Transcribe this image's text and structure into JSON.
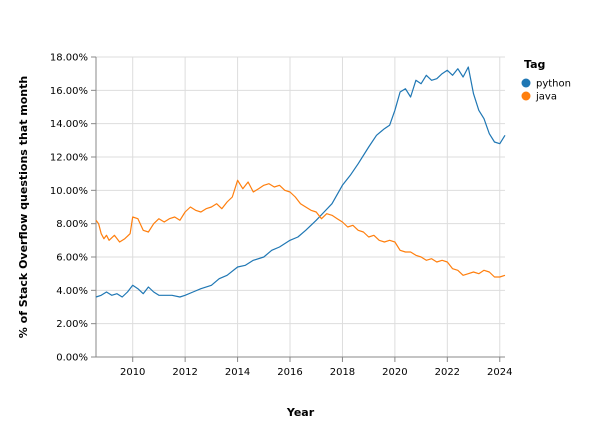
{
  "chart_data": {
    "type": "line",
    "title": "",
    "xlabel": "Year",
    "ylabel": "% of Stack Overflow questions that month",
    "xlim": [
      2008.6,
      2024.2
    ],
    "ylim": [
      0,
      18
    ],
    "x_ticks": [
      "2010",
      "2012",
      "2014",
      "2016",
      "2018",
      "2020",
      "2022",
      "2024"
    ],
    "y_ticks": [
      "0.00%",
      "2.00%",
      "4.00%",
      "6.00%",
      "8.00%",
      "10.00%",
      "12.00%",
      "14.00%",
      "16.00%",
      "18.00%"
    ],
    "grid": true,
    "legend": {
      "title": "Tag",
      "position": "top-right"
    },
    "series": [
      {
        "name": "python",
        "color": "#1f77b4",
        "points": [
          [
            2008.6,
            3.6
          ],
          [
            2008.8,
            3.7
          ],
          [
            2009.0,
            3.9
          ],
          [
            2009.2,
            3.7
          ],
          [
            2009.4,
            3.8
          ],
          [
            2009.6,
            3.6
          ],
          [
            2009.8,
            3.9
          ],
          [
            2010.0,
            4.3
          ],
          [
            2010.2,
            4.1
          ],
          [
            2010.4,
            3.8
          ],
          [
            2010.6,
            4.2
          ],
          [
            2010.8,
            3.9
          ],
          [
            2011.0,
            3.7
          ],
          [
            2011.2,
            3.7
          ],
          [
            2011.5,
            3.7
          ],
          [
            2011.8,
            3.6
          ],
          [
            2012.0,
            3.7
          ],
          [
            2012.3,
            3.9
          ],
          [
            2012.6,
            4.1
          ],
          [
            2013.0,
            4.3
          ],
          [
            2013.3,
            4.7
          ],
          [
            2013.6,
            4.9
          ],
          [
            2014.0,
            5.4
          ],
          [
            2014.3,
            5.5
          ],
          [
            2014.6,
            5.8
          ],
          [
            2015.0,
            6.0
          ],
          [
            2015.3,
            6.4
          ],
          [
            2015.6,
            6.6
          ],
          [
            2016.0,
            7.0
          ],
          [
            2016.3,
            7.2
          ],
          [
            2016.6,
            7.6
          ],
          [
            2017.0,
            8.2
          ],
          [
            2017.3,
            8.7
          ],
          [
            2017.6,
            9.2
          ],
          [
            2018.0,
            10.3
          ],
          [
            2018.3,
            10.9
          ],
          [
            2018.6,
            11.6
          ],
          [
            2019.0,
            12.6
          ],
          [
            2019.3,
            13.3
          ],
          [
            2019.6,
            13.7
          ],
          [
            2019.8,
            13.9
          ],
          [
            2020.0,
            14.8
          ],
          [
            2020.2,
            15.9
          ],
          [
            2020.4,
            16.1
          ],
          [
            2020.6,
            15.6
          ],
          [
            2020.8,
            16.6
          ],
          [
            2021.0,
            16.4
          ],
          [
            2021.2,
            16.9
          ],
          [
            2021.4,
            16.6
          ],
          [
            2021.6,
            16.7
          ],
          [
            2021.8,
            17.0
          ],
          [
            2022.0,
            17.2
          ],
          [
            2022.2,
            16.9
          ],
          [
            2022.4,
            17.3
          ],
          [
            2022.6,
            16.8
          ],
          [
            2022.8,
            17.4
          ],
          [
            2023.0,
            15.8
          ],
          [
            2023.2,
            14.8
          ],
          [
            2023.4,
            14.3
          ],
          [
            2023.6,
            13.4
          ],
          [
            2023.8,
            12.9
          ],
          [
            2024.0,
            12.8
          ],
          [
            2024.2,
            13.3
          ]
        ]
      },
      {
        "name": "java",
        "color": "#ff7f0e",
        "points": [
          [
            2008.6,
            8.2
          ],
          [
            2008.7,
            8.0
          ],
          [
            2008.8,
            7.4
          ],
          [
            2008.9,
            7.1
          ],
          [
            2009.0,
            7.3
          ],
          [
            2009.1,
            7.0
          ],
          [
            2009.3,
            7.3
          ],
          [
            2009.5,
            6.9
          ],
          [
            2009.7,
            7.1
          ],
          [
            2009.9,
            7.4
          ],
          [
            2010.0,
            8.4
          ],
          [
            2010.2,
            8.3
          ],
          [
            2010.4,
            7.6
          ],
          [
            2010.6,
            7.5
          ],
          [
            2010.8,
            8.0
          ],
          [
            2011.0,
            8.3
          ],
          [
            2011.2,
            8.1
          ],
          [
            2011.4,
            8.3
          ],
          [
            2011.6,
            8.4
          ],
          [
            2011.8,
            8.2
          ],
          [
            2012.0,
            8.7
          ],
          [
            2012.2,
            9.0
          ],
          [
            2012.4,
            8.8
          ],
          [
            2012.6,
            8.7
          ],
          [
            2012.8,
            8.9
          ],
          [
            2013.0,
            9.0
          ],
          [
            2013.2,
            9.2
          ],
          [
            2013.4,
            8.9
          ],
          [
            2013.6,
            9.3
          ],
          [
            2013.8,
            9.6
          ],
          [
            2014.0,
            10.6
          ],
          [
            2014.2,
            10.1
          ],
          [
            2014.4,
            10.5
          ],
          [
            2014.6,
            9.9
          ],
          [
            2014.8,
            10.1
          ],
          [
            2015.0,
            10.3
          ],
          [
            2015.2,
            10.4
          ],
          [
            2015.4,
            10.2
          ],
          [
            2015.6,
            10.3
          ],
          [
            2015.8,
            10.0
          ],
          [
            2016.0,
            9.9
          ],
          [
            2016.2,
            9.6
          ],
          [
            2016.4,
            9.2
          ],
          [
            2016.6,
            9.0
          ],
          [
            2016.8,
            8.8
          ],
          [
            2017.0,
            8.7
          ],
          [
            2017.2,
            8.3
          ],
          [
            2017.4,
            8.6
          ],
          [
            2017.6,
            8.5
          ],
          [
            2017.8,
            8.3
          ],
          [
            2018.0,
            8.1
          ],
          [
            2018.2,
            7.8
          ],
          [
            2018.4,
            7.9
          ],
          [
            2018.6,
            7.6
          ],
          [
            2018.8,
            7.5
          ],
          [
            2019.0,
            7.2
          ],
          [
            2019.2,
            7.3
          ],
          [
            2019.4,
            7.0
          ],
          [
            2019.6,
            6.9
          ],
          [
            2019.8,
            7.0
          ],
          [
            2020.0,
            6.9
          ],
          [
            2020.2,
            6.4
          ],
          [
            2020.4,
            6.3
          ],
          [
            2020.6,
            6.3
          ],
          [
            2020.8,
            6.1
          ],
          [
            2021.0,
            6.0
          ],
          [
            2021.2,
            5.8
          ],
          [
            2021.4,
            5.9
          ],
          [
            2021.6,
            5.7
          ],
          [
            2021.8,
            5.8
          ],
          [
            2022.0,
            5.7
          ],
          [
            2022.2,
            5.3
          ],
          [
            2022.4,
            5.2
          ],
          [
            2022.6,
            4.9
          ],
          [
            2022.8,
            5.0
          ],
          [
            2023.0,
            5.1
          ],
          [
            2023.2,
            5.0
          ],
          [
            2023.4,
            5.2
          ],
          [
            2023.6,
            5.1
          ],
          [
            2023.8,
            4.8
          ],
          [
            2024.0,
            4.8
          ],
          [
            2024.2,
            4.9
          ]
        ]
      }
    ]
  }
}
